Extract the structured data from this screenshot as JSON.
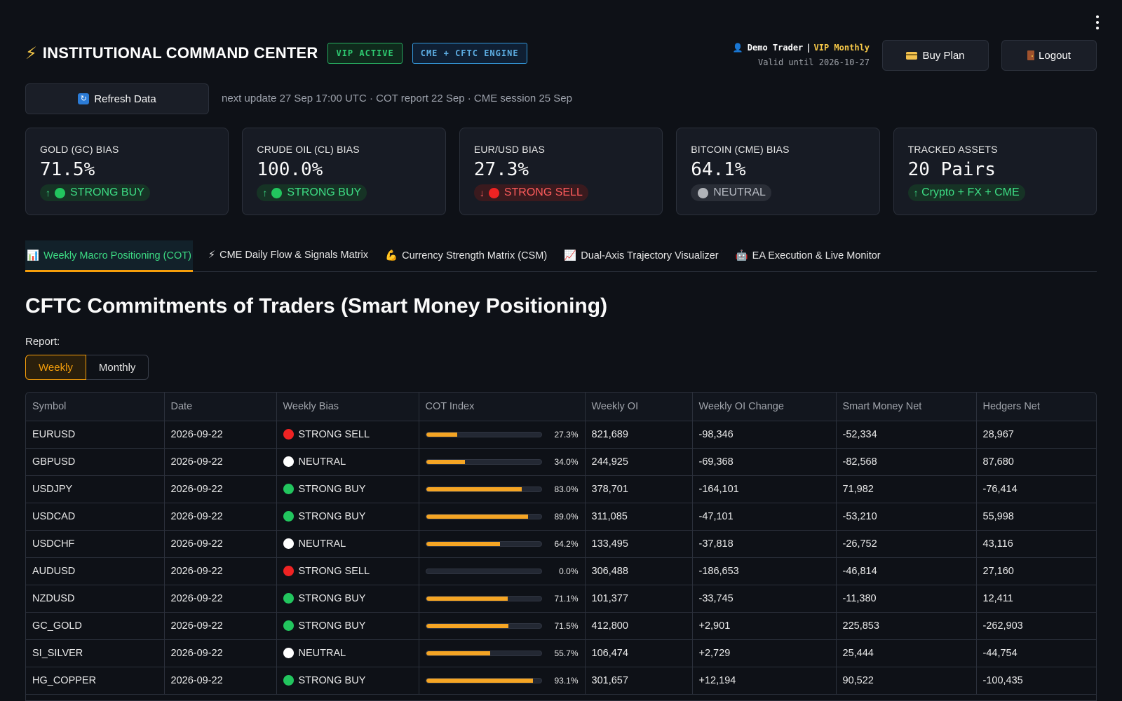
{
  "header": {
    "title": "INSTITUTIONAL COMMAND CENTER",
    "badge_vip": "VIP ACTIVE",
    "badge_engine": "CME + CFTC ENGINE",
    "user_name": "Demo Trader",
    "user_sep": "|",
    "user_plan": "VIP Monthly",
    "valid_until": "Valid until 2026-10-27",
    "buy_plan_label": "Buy Plan",
    "logout_label": "Logout"
  },
  "refresh": {
    "button_label": "Refresh Data",
    "info": "next update 27 Sep 17:00 UTC · COT report 22 Sep · CME session 25 Sep"
  },
  "cards": [
    {
      "label": "GOLD (GC) BIAS",
      "value": "71.5%",
      "signal": "STRONG BUY",
      "tone": "buy"
    },
    {
      "label": "CRUDE OIL (CL) BIAS",
      "value": "100.0%",
      "signal": "STRONG BUY",
      "tone": "buy"
    },
    {
      "label": "EUR/USD BIAS",
      "value": "27.3%",
      "signal": "STRONG SELL",
      "tone": "sell"
    },
    {
      "label": "BITCOIN (CME) BIAS",
      "value": "64.1%",
      "signal": "NEUTRAL",
      "tone": "neutral"
    },
    {
      "label": "TRACKED ASSETS",
      "value": "20 Pairs",
      "signal": "Crypto + FX + CME",
      "tone": "buy"
    }
  ],
  "tabs": [
    {
      "icon": "📊",
      "label": "Weekly Macro Positioning (COT)"
    },
    {
      "icon": "⚡",
      "label": "CME Daily Flow & Signals Matrix"
    },
    {
      "icon": "💪",
      "label": "Currency Strength Matrix (CSM)"
    },
    {
      "icon": "📈",
      "label": "Dual-Axis Trajectory Visualizer"
    },
    {
      "icon": "🤖",
      "label": "EA Execution & Live Monitor"
    }
  ],
  "section_title": "CFTC Commitments of Traders (Smart Money Positioning)",
  "report": {
    "label": "Report:",
    "options": [
      "Weekly",
      "Monthly"
    ],
    "selected": "Weekly"
  },
  "table": {
    "columns": [
      "Symbol",
      "Date",
      "Weekly Bias",
      "COT Index",
      "Weekly OI",
      "Weekly OI Change",
      "Smart Money Net",
      "Hedgers Net"
    ],
    "rows": [
      {
        "symbol": "EURUSD",
        "date": "2026-09-22",
        "bias": "STRONG SELL",
        "tone": "sell",
        "cot": 27.3,
        "cot_label": "27.3%",
        "oi": "821,689",
        "oi_change": "-98,346",
        "smart": "-52,334",
        "hedgers": "28,967"
      },
      {
        "symbol": "GBPUSD",
        "date": "2026-09-22",
        "bias": "NEUTRAL",
        "tone": "neutral",
        "cot": 34.0,
        "cot_label": "34.0%",
        "oi": "244,925",
        "oi_change": "-69,368",
        "smart": "-82,568",
        "hedgers": "87,680"
      },
      {
        "symbol": "USDJPY",
        "date": "2026-09-22",
        "bias": "STRONG BUY",
        "tone": "buy",
        "cot": 83.0,
        "cot_label": "83.0%",
        "oi": "378,701",
        "oi_change": "-164,101",
        "smart": "71,982",
        "hedgers": "-76,414"
      },
      {
        "symbol": "USDCAD",
        "date": "2026-09-22",
        "bias": "STRONG BUY",
        "tone": "buy",
        "cot": 89.0,
        "cot_label": "89.0%",
        "oi": "311,085",
        "oi_change": "-47,101",
        "smart": "-53,210",
        "hedgers": "55,998"
      },
      {
        "symbol": "USDCHF",
        "date": "2026-09-22",
        "bias": "NEUTRAL",
        "tone": "neutral",
        "cot": 64.2,
        "cot_label": "64.2%",
        "oi": "133,495",
        "oi_change": "-37,818",
        "smart": "-26,752",
        "hedgers": "43,116"
      },
      {
        "symbol": "AUDUSD",
        "date": "2026-09-22",
        "bias": "STRONG SELL",
        "tone": "sell",
        "cot": 0.0,
        "cot_label": "0.0%",
        "oi": "306,488",
        "oi_change": "-186,653",
        "smart": "-46,814",
        "hedgers": "27,160"
      },
      {
        "symbol": "NZDUSD",
        "date": "2026-09-22",
        "bias": "STRONG BUY",
        "tone": "buy",
        "cot": 71.1,
        "cot_label": "71.1%",
        "oi": "101,377",
        "oi_change": "-33,745",
        "smart": "-11,380",
        "hedgers": "12,411"
      },
      {
        "symbol": "GC_GOLD",
        "date": "2026-09-22",
        "bias": "STRONG BUY",
        "tone": "buy",
        "cot": 71.5,
        "cot_label": "71.5%",
        "oi": "412,800",
        "oi_change": "+2,901",
        "smart": "225,853",
        "hedgers": "-262,903"
      },
      {
        "symbol": "SI_SILVER",
        "date": "2026-09-22",
        "bias": "NEUTRAL",
        "tone": "neutral",
        "cot": 55.7,
        "cot_label": "55.7%",
        "oi": "106,474",
        "oi_change": "+2,729",
        "smart": "25,444",
        "hedgers": "-44,754"
      },
      {
        "symbol": "HG_COPPER",
        "date": "2026-09-22",
        "bias": "STRONG BUY",
        "tone": "buy",
        "cot": 93.1,
        "cot_label": "93.1%",
        "oi": "301,657",
        "oi_change": "+12,194",
        "smart": "90,522",
        "hedgers": "-100,435"
      }
    ]
  },
  "colors": {
    "background": "#0e1117",
    "accent_orange": "#f59e0b",
    "buy_green": "#22c55e",
    "sell_red": "#ef2323",
    "vip_gold": "#f7c948",
    "engine_blue": "#5dade2"
  }
}
